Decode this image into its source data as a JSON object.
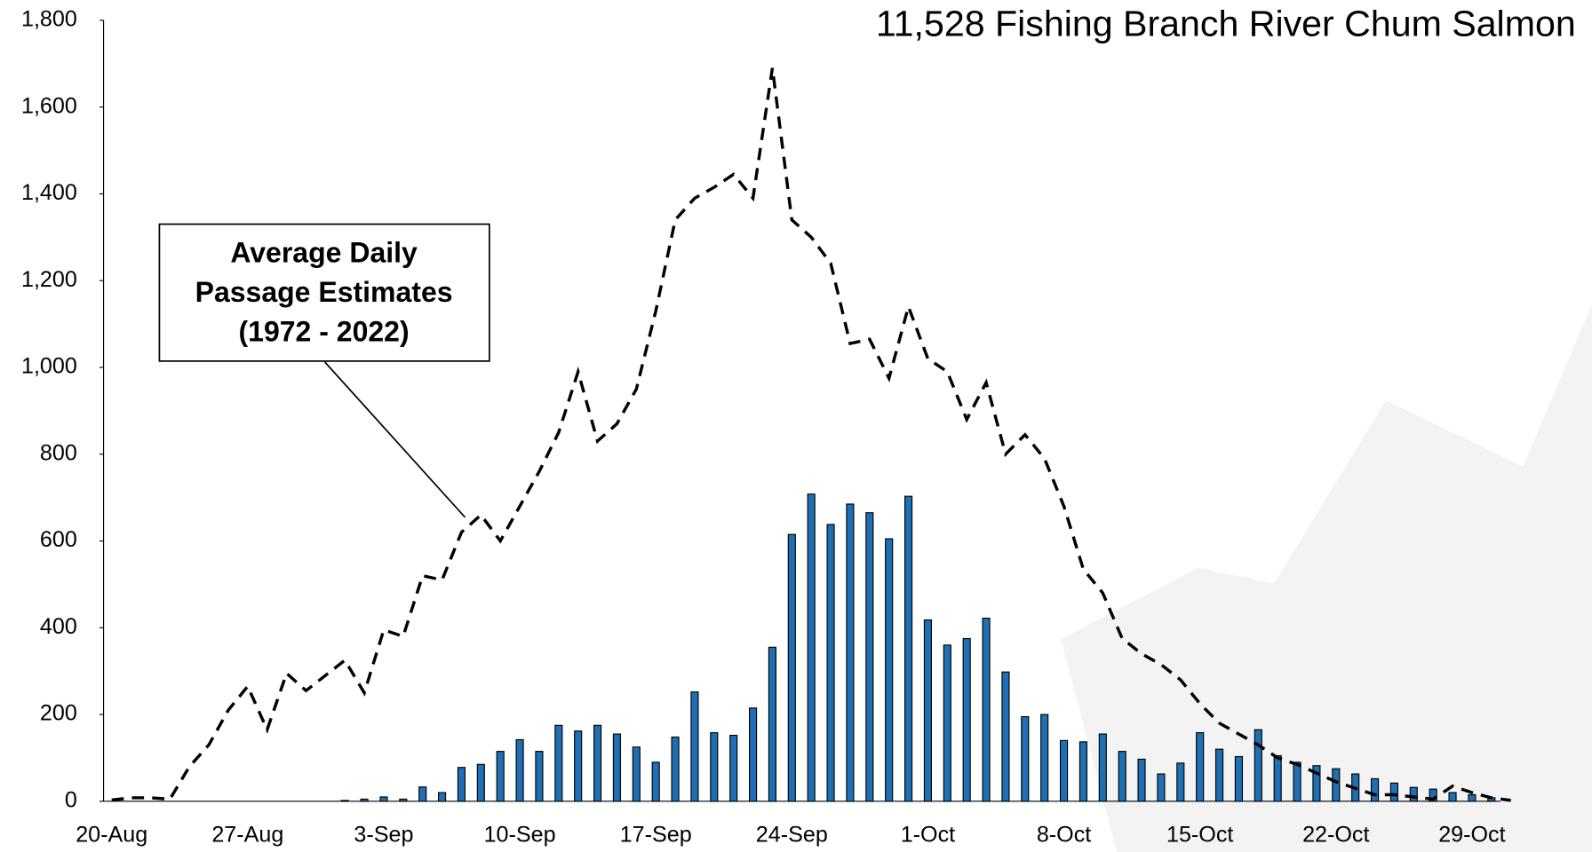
{
  "chart_data": {
    "type": "bar",
    "title": "11,528 Fishing Branch River Chum Salmon",
    "annotation": [
      "Average Daily",
      "Passage Estimates",
      "(1972 - 2022)"
    ],
    "categories": [
      "20-Aug",
      null,
      null,
      null,
      null,
      null,
      null,
      "27-Aug",
      null,
      null,
      null,
      null,
      null,
      null,
      "3-Sep",
      null,
      null,
      null,
      null,
      null,
      null,
      "10-Sep",
      null,
      null,
      null,
      null,
      null,
      null,
      "17-Sep",
      null,
      null,
      null,
      null,
      null,
      null,
      "24-Sep",
      null,
      null,
      null,
      null,
      null,
      null,
      "1-Oct",
      null,
      null,
      null,
      null,
      null,
      null,
      "8-Oct",
      null,
      null,
      null,
      null,
      null,
      null,
      "15-Oct",
      null,
      null,
      null,
      null,
      null,
      null,
      "22-Oct",
      null,
      null,
      null,
      null,
      null,
      null,
      "29-Oct",
      null,
      null
    ],
    "series": [
      {
        "type": "bar",
        "color": "#1f6fb4",
        "values": [
          0,
          0,
          0,
          0,
          0,
          0,
          0,
          0,
          0,
          0,
          0,
          0,
          2,
          5,
          10,
          5,
          33,
          20,
          78,
          85,
          115,
          142,
          115,
          175,
          162,
          175,
          155,
          125,
          90,
          148,
          252,
          158,
          152,
          215,
          355,
          615,
          708,
          638,
          685,
          665,
          605,
          703,
          418,
          360,
          375,
          422,
          298,
          195,
          200,
          140,
          137,
          155,
          115,
          97,
          63,
          88,
          158,
          120,
          103,
          165,
          105,
          90,
          82,
          75,
          63,
          52,
          42,
          32,
          28,
          20,
          15,
          8,
          0
        ]
      },
      {
        "type": "line",
        "color": "#000000",
        "dashed": true,
        "values": [
          3,
          8,
          8,
          5,
          80,
          130,
          210,
          265,
          165,
          295,
          255,
          290,
          325,
          250,
          395,
          380,
          520,
          510,
          620,
          660,
          600,
          680,
          760,
          850,
          990,
          830,
          870,
          950,
          1130,
          1340,
          1390,
          1415,
          1445,
          1390,
          1690,
          1340,
          1300,
          1240,
          1055,
          1065,
          975,
          1140,
          1020,
          990,
          880,
          965,
          800,
          845,
          790,
          680,
          535,
          480,
          375,
          340,
          315,
          280,
          225,
          180,
          155,
          130,
          100,
          85,
          65,
          45,
          30,
          15,
          15,
          10,
          5,
          35,
          20,
          8,
          2
        ]
      }
    ],
    "ylim": [
      0,
      1800
    ],
    "yticks": [
      0,
      200,
      400,
      600,
      800,
      {
        "value": 1000,
        "label": "1,000"
      },
      {
        "value": 1200,
        "label": "1,200"
      },
      {
        "value": 1400,
        "label": "1,400"
      },
      {
        "value": 1600,
        "label": "1,600"
      },
      {
        "value": 1800,
        "label": "1,800"
      }
    ]
  }
}
